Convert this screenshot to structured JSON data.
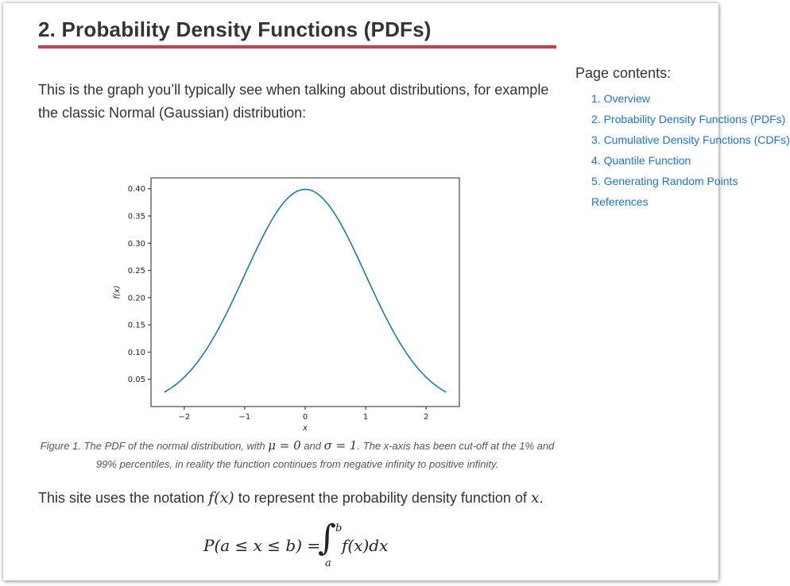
{
  "heading": "2. Probability Density Functions (PDFs)",
  "intro": "This is the graph you’ll typically see when talking about distributions, for example the classic Normal (Gaussian) distribution:",
  "toc": {
    "title": "Page contents:",
    "items": [
      "1. Overview",
      "2. Probability Density Functions (PDFs)",
      "3. Cumulative Density Functions (CDFs)",
      "4. Quantile Function",
      "5. Generating Random Points",
      "References"
    ]
  },
  "chart_data": {
    "type": "line",
    "title": "",
    "xlabel": "x",
    "ylabel": "f(x)",
    "xlim": [
      -2.55,
      2.55
    ],
    "ylim": [
      0.0,
      0.42
    ],
    "xticks": [
      "−2",
      "−1",
      "0",
      "1",
      "2"
    ],
    "yticks": [
      "0.05",
      "0.10",
      "0.15",
      "0.20",
      "0.25",
      "0.30",
      "0.35",
      "0.40"
    ],
    "grid": false,
    "series": [
      {
        "color": "#1f77b4",
        "x": [
          -2.33,
          -2.0,
          -1.75,
          -1.5,
          -1.25,
          -1.0,
          -0.75,
          -0.5,
          -0.25,
          0.0,
          0.25,
          0.5,
          0.75,
          1.0,
          1.25,
          1.5,
          1.75,
          2.0,
          2.33
        ],
        "y": [
          0.0264,
          0.054,
          0.0863,
          0.1295,
          0.1826,
          0.242,
          0.3011,
          0.3521,
          0.3867,
          0.3989,
          0.3867,
          0.3521,
          0.3011,
          0.242,
          0.1826,
          0.1295,
          0.0863,
          0.054,
          0.0264
        ]
      }
    ]
  },
  "caption": {
    "p1": "Figure 1. The PDF of the normal distribution, with ",
    "mu": "μ = 0",
    "p2": " and ",
    "sigma": "σ = 1",
    "p3": ". The x-axis has been cut-off at the 1% and 99% percentiles, in reality the function continues from negative infinity to positive infinity."
  },
  "notation": {
    "p1": "This site uses the notation ",
    "fx": "f(x)",
    "p2": " to represent the probability density function of ",
    "x": "x",
    "p3": "."
  },
  "equation": {
    "lhs": "P(a ≤ x ≤ b) =",
    "integral": "∫",
    "upper": "b",
    "lower": "a",
    "integrand": "f(x)dx"
  }
}
